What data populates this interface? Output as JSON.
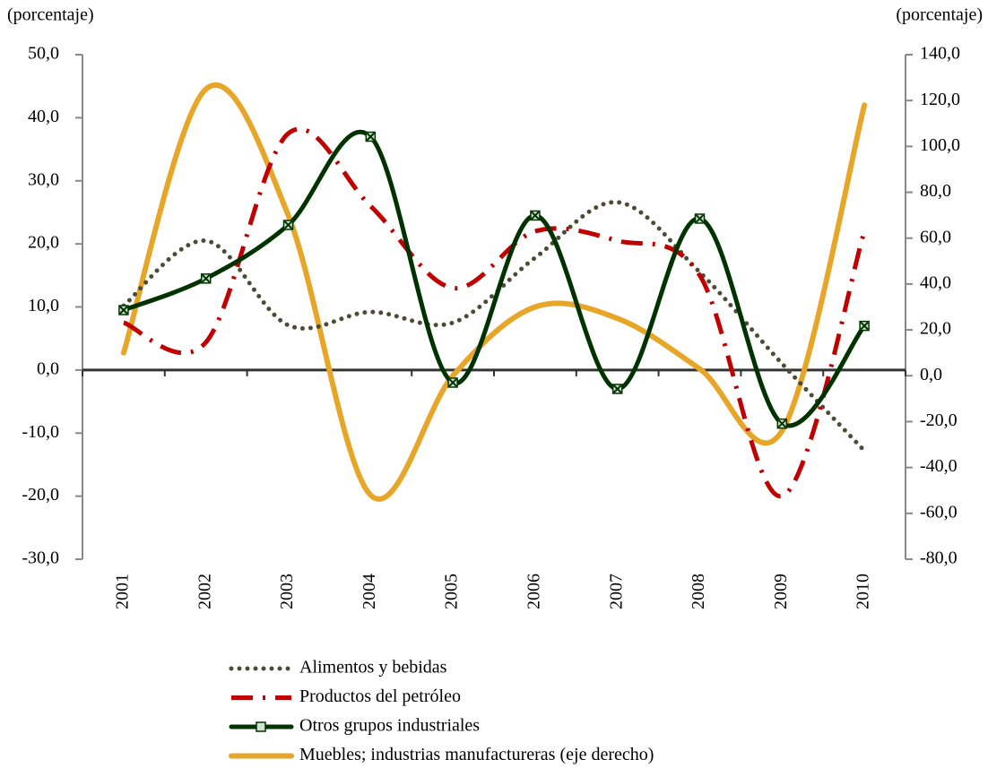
{
  "chart_data": {
    "type": "line",
    "y_label": "(porcentaje)",
    "y2_label": "(porcentaje)",
    "categories": [
      "2001",
      "2002",
      "2003",
      "2004",
      "2005",
      "2006",
      "2007",
      "2008",
      "2009",
      "2010"
    ],
    "series": [
      {
        "name": "Alimentos y bebidas",
        "color": "#4d4a36",
        "values": [
          10.2,
          20.5,
          7.1,
          9.2,
          7.5,
          17.8,
          26.6,
          15.5,
          1.0,
          -12.8
        ]
      },
      {
        "name": "Productos del petróleo",
        "color": "#c00000",
        "values": [
          7.5,
          4.4,
          37.5,
          26.0,
          13.0,
          22.0,
          20.5,
          15.0,
          -20.0,
          22.0
        ]
      },
      {
        "name": "Otros grupos industriales",
        "color": "#003300",
        "values": [
          9.5,
          14.5,
          23.0,
          37.0,
          -2.0,
          24.5,
          -3.0,
          24.0,
          -8.5,
          7.0
        ]
      },
      {
        "name": "Muebles; industrias manufactureras (eje derecho)",
        "color": "#e8a628",
        "axis": "y2",
        "values": [
          10,
          125,
          70,
          -52,
          0,
          30,
          25,
          3,
          -24,
          118
        ]
      }
    ],
    "ylim": [
      -30,
      50
    ],
    "yticks": [
      {
        "value": -30,
        "label": "-30,0"
      },
      {
        "value": -20,
        "label": "-20,0"
      },
      {
        "value": -10,
        "label": "-10,0"
      },
      {
        "value": 0,
        "label": "0,0"
      },
      {
        "value": 10,
        "label": "10,0"
      },
      {
        "value": 20,
        "label": "20,0"
      },
      {
        "value": 30,
        "label": "30,0"
      },
      {
        "value": 40,
        "label": "40,0"
      },
      {
        "value": 50,
        "label": "50,0"
      }
    ],
    "y2lim": [
      -80,
      140
    ],
    "y2ticks": [
      {
        "value": -80,
        "label": "-80,0"
      },
      {
        "value": -60,
        "label": "-60,0"
      },
      {
        "value": -40,
        "label": "-40,0"
      },
      {
        "value": -20,
        "label": "-20,0"
      },
      {
        "value": 0,
        "label": "0,0"
      },
      {
        "value": 20,
        "label": "20,0"
      },
      {
        "value": 40,
        "label": "40,0"
      },
      {
        "value": 60,
        "label": "60,0"
      },
      {
        "value": 80,
        "label": "80,0"
      },
      {
        "value": 100,
        "label": "100,0"
      },
      {
        "value": 120,
        "label": "120,0"
      },
      {
        "value": 140,
        "label": "140,0"
      }
    ]
  }
}
